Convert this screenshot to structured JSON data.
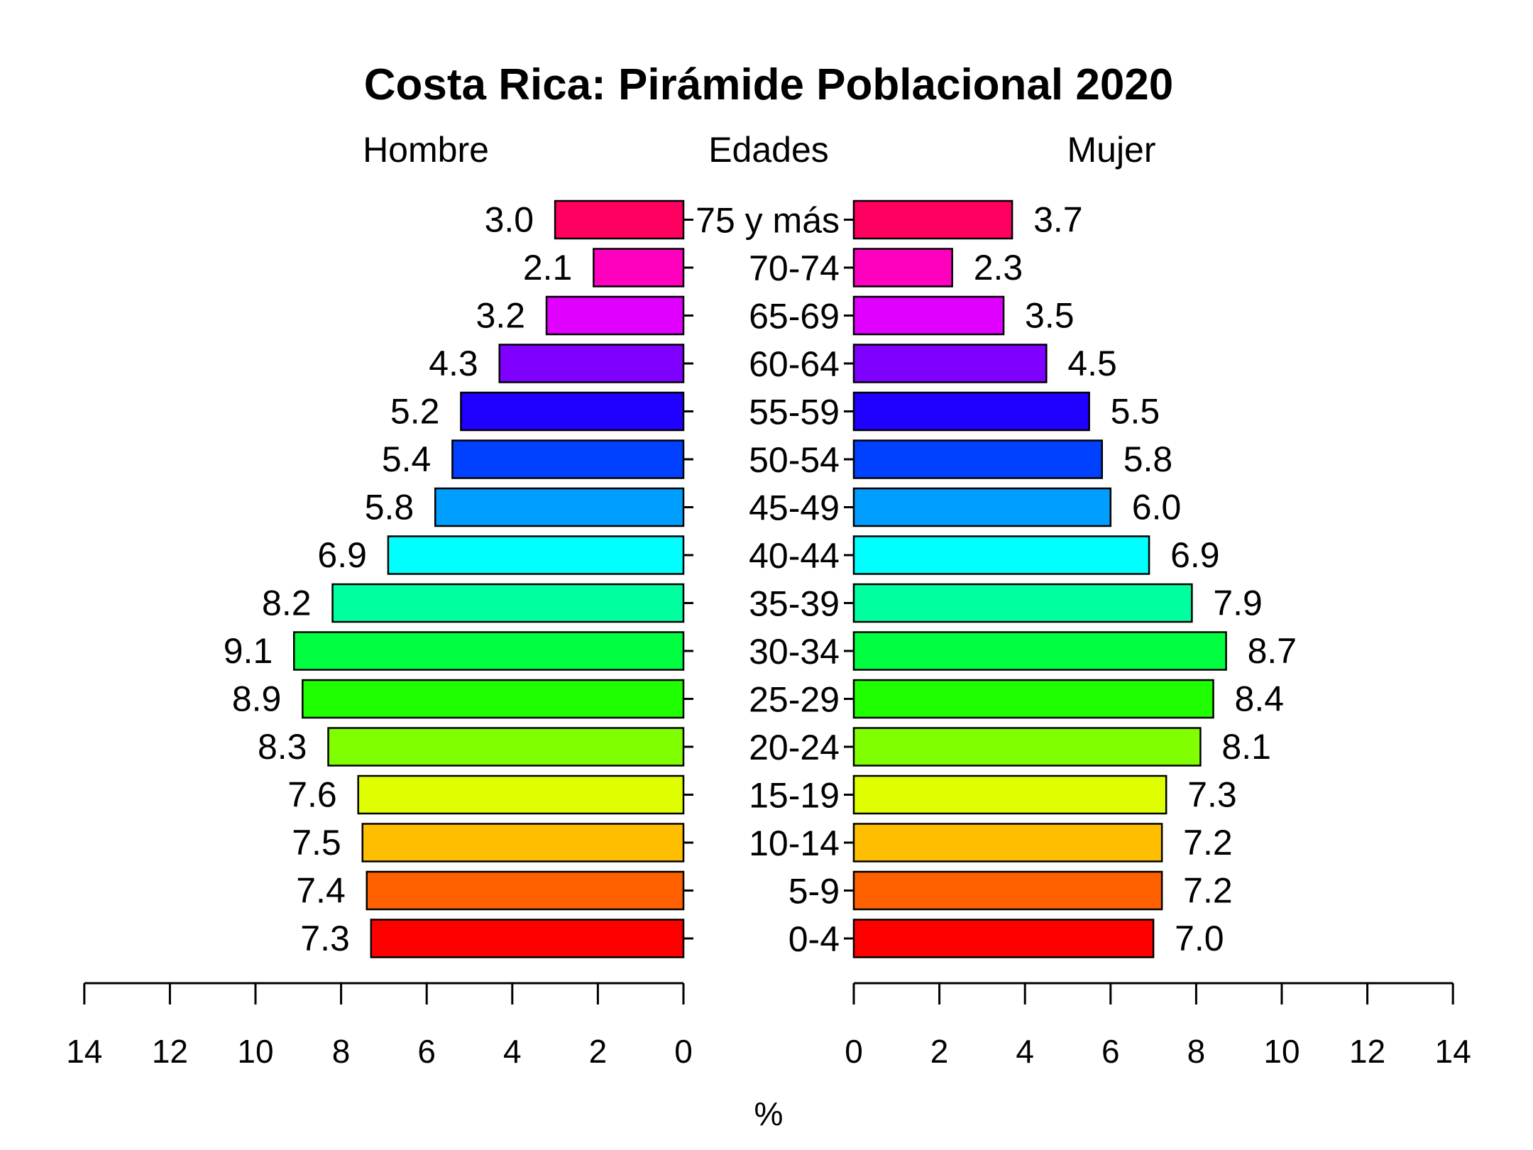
{
  "chart_data": {
    "type": "bar",
    "title": "Costa Rica: Pirámide Poblacional 2020",
    "left_header": "Hombre",
    "center_header": "Edades",
    "right_header": "Mujer",
    "xlabel": "%",
    "xlim": [
      0,
      14
    ],
    "xticks": [
      0,
      2,
      4,
      6,
      8,
      10,
      12,
      14
    ],
    "categories": [
      "0-4",
      "5-9",
      "10-14",
      "15-19",
      "20-24",
      "25-29",
      "30-34",
      "35-39",
      "40-44",
      "45-49",
      "50-54",
      "55-59",
      "60-64",
      "65-69",
      "70-74",
      "75 y más"
    ],
    "series": [
      {
        "name": "Hombre",
        "values": [
          7.3,
          7.4,
          7.5,
          7.6,
          8.3,
          8.9,
          9.1,
          8.2,
          6.9,
          5.8,
          5.4,
          5.2,
          4.3,
          3.2,
          2.1,
          3.0
        ]
      },
      {
        "name": "Mujer",
        "values": [
          7.0,
          7.2,
          7.2,
          7.3,
          8.1,
          8.4,
          8.7,
          7.9,
          6.9,
          6.0,
          5.8,
          5.5,
          4.5,
          3.5,
          2.3,
          3.7
        ]
      }
    ],
    "colors": [
      "#FF0000",
      "#FF6000",
      "#FFBF00",
      "#DFFF00",
      "#80FF00",
      "#20FF00",
      "#00FF40",
      "#00FF9F",
      "#00FFFF",
      "#009FFF",
      "#0040FF",
      "#2000FF",
      "#8000FF",
      "#DF00FF",
      "#FF00BF",
      "#FF0060"
    ],
    "value_format": "one-decimal"
  }
}
